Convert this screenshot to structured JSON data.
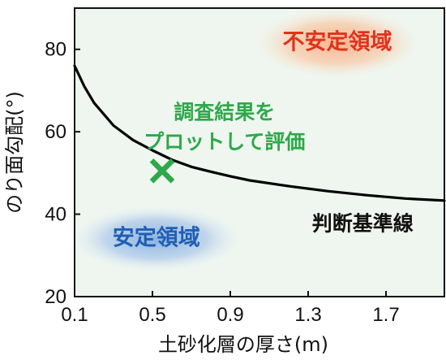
{
  "chart_data": {
    "type": "line",
    "xlabel": "土砂化層の厚さ(m)",
    "ylabel": "のり面勾配(°)",
    "xlim": [
      0.1,
      2.0
    ],
    "ylim": [
      20,
      90
    ],
    "xticks": [
      0.1,
      0.5,
      0.9,
      1.3,
      1.7
    ],
    "xtick_labels": [
      "0.1",
      "0.5",
      "0.9",
      "1.3",
      "1.7"
    ],
    "yticks": [
      20,
      40,
      60,
      80
    ],
    "ytick_labels": [
      "20",
      "40",
      "60",
      "80"
    ],
    "grid": false,
    "series": [
      {
        "name": "判断基準線",
        "color": "#000000",
        "x": [
          0.1,
          0.15,
          0.2,
          0.3,
          0.4,
          0.5,
          0.6,
          0.7,
          0.8,
          0.9,
          1.0,
          1.2,
          1.4,
          1.6,
          1.8,
          2.0
        ],
        "y": [
          76,
          71,
          67,
          61.5,
          58,
          55.5,
          53.2,
          51.5,
          50.3,
          49.2,
          48.2,
          46.8,
          45.6,
          44.6,
          43.8,
          43.3
        ]
      }
    ],
    "points": [
      {
        "label": "調査結果",
        "x": 0.55,
        "y": 50.5,
        "marker": "x",
        "color": "#2ea84a"
      }
    ],
    "annotations": [
      {
        "text": "不安定領域",
        "x": 1.45,
        "y": 81.5,
        "color": "#e0321e",
        "bg": "#f3a77a"
      },
      {
        "text": "安定領域",
        "x": 0.52,
        "y": 34,
        "color": "#1f5fb4",
        "bg": "#7fa5d8"
      },
      {
        "text": "調査結果を",
        "x": 0.87,
        "y": 64.5,
        "color": "#2ea84a"
      },
      {
        "text": "プロットして評価",
        "x": 0.87,
        "y": 57.3,
        "color": "#2ea84a"
      },
      {
        "text": "判断基準線",
        "x": 1.58,
        "y": 37.5,
        "color": "#111111"
      }
    ],
    "plot_background": "#eef6ef"
  }
}
